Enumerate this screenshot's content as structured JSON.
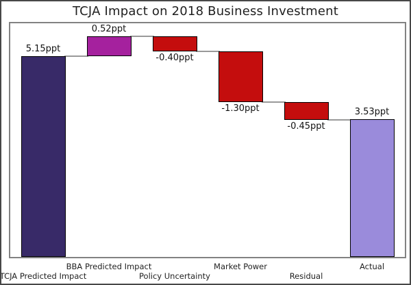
{
  "chart_data": {
    "type": "bar",
    "subtype": "waterfall",
    "title": "TCJA Impact on 2018 Business Investment",
    "categories": [
      "TCJA Predicted Impact",
      "BBA Predicted Impact",
      "Policy Uncertainty",
      "Market Power",
      "Residual",
      "Actual"
    ],
    "values": [
      5.15,
      0.52,
      -0.4,
      -1.3,
      -0.45,
      3.53
    ],
    "value_labels": [
      "5.15ppt",
      "0.52ppt",
      "-0.40ppt",
      "-1.30ppt",
      "-0.45ppt",
      "3.53ppt"
    ],
    "segment_start": [
      0,
      5.15,
      5.67,
      5.27,
      3.97,
      0
    ],
    "segment_end": [
      5.15,
      5.67,
      5.27,
      3.97,
      3.52,
      3.53
    ],
    "label_side": [
      "above",
      "above",
      "below",
      "below",
      "below",
      "above"
    ],
    "category_row": [
      "lower",
      "upper",
      "lower",
      "upper",
      "lower",
      "upper"
    ],
    "bar_colors": [
      "#382a68",
      "#a5219e",
      "#c40d0d",
      "#c40d0d",
      "#c40d0d",
      "#9a8bdb"
    ],
    "connector_color": "#999999",
    "bar_border_color": "#000000",
    "xlabel": "",
    "ylabel": "",
    "ylim": [
      0,
      6
    ],
    "grid": false,
    "legend": "none"
  }
}
